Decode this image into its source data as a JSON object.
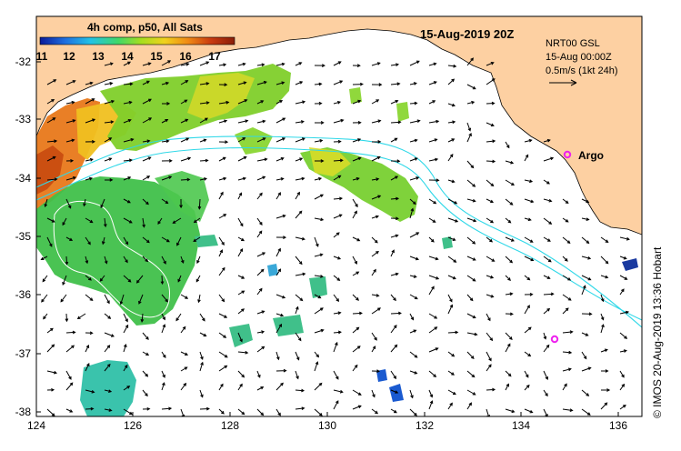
{
  "colorbar": {
    "title": "4h comp, p50, All Sats",
    "ticks": [
      "11",
      "12",
      "13",
      "14",
      "15",
      "16",
      "17"
    ],
    "colors": [
      "#0a1a9a",
      "#1f6fe0",
      "#22c3e6",
      "#3fd86a",
      "#a6de1e",
      "#f0d21c",
      "#f08a14",
      "#c83a10",
      "#8a1e08"
    ]
  },
  "date_title": "15-Aug-2019 20Z",
  "info": {
    "line1": "NRT00 GSL",
    "line2": "15-Aug 00:00Z",
    "line3": "0.5m/s (1kt 24h)"
  },
  "argo_label": "Argo",
  "x_ticks": [
    "124",
    "126",
    "128",
    "130",
    "132",
    "134",
    "136"
  ],
  "y_ticks": [
    "-32",
    "-33",
    "-34",
    "-35",
    "-36",
    "-37",
    "-38"
  ],
  "credit": "© IMOS 20-Aug-2019 13:36 Hobart",
  "colors": {
    "land": "#fdd0a2",
    "argo": "#ee22ee",
    "contour": "#30d8e8"
  }
}
